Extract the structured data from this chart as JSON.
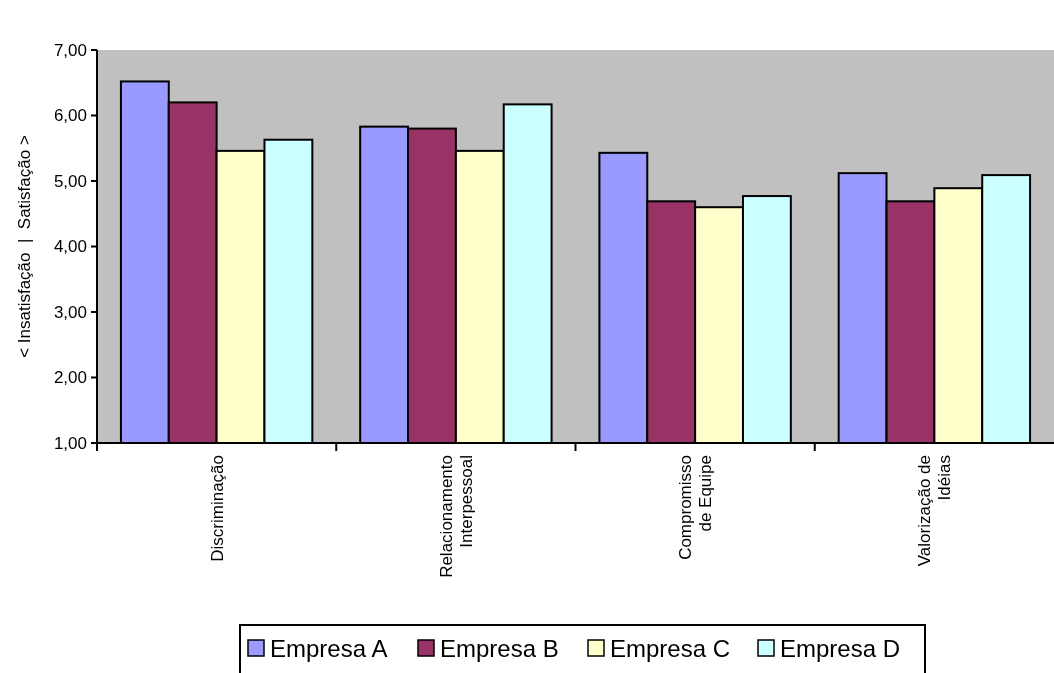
{
  "chart_data": {
    "type": "bar",
    "ylabel": "< Insatisfação  |  Satisfação >",
    "categories": [
      "Discriminação",
      "Relacionamento\nInterpessoal",
      "Compromisso\nde Equipe",
      "Valorização de\nIdéias"
    ],
    "series": [
      {
        "name": "Empresa A",
        "color": "#9999ff",
        "values": [
          6.52,
          5.83,
          5.43,
          5.12
        ]
      },
      {
        "name": "Empresa B",
        "color": "#993366",
        "values": [
          6.2,
          5.8,
          4.69,
          4.69
        ]
      },
      {
        "name": "Empresa C",
        "color": "#ffffcc",
        "values": [
          5.46,
          5.46,
          4.6,
          4.89
        ]
      },
      {
        "name": "Empresa D",
        "color": "#ccffff",
        "values": [
          5.63,
          6.17,
          4.77,
          5.09
        ]
      }
    ],
    "ylim": [
      1,
      7
    ],
    "yticks": [
      {
        "value": 1,
        "label": "1,00"
      },
      {
        "value": 2,
        "label": "2,00"
      },
      {
        "value": 3,
        "label": "3,00"
      },
      {
        "value": 4,
        "label": "4,00"
      },
      {
        "value": 5,
        "label": "5,00"
      },
      {
        "value": 6,
        "label": "6,00"
      },
      {
        "value": 7,
        "label": "7,00"
      }
    ],
    "grid": false,
    "legend": "bottom"
  }
}
